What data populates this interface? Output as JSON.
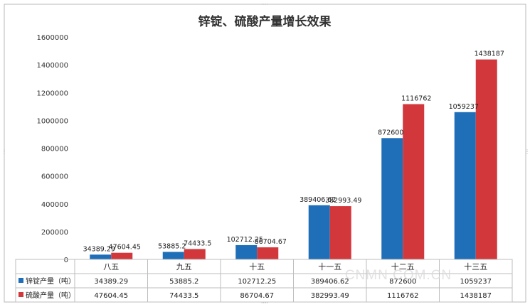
{
  "chart_data": {
    "type": "bar",
    "title": "锌锭、硫酸产量增长效果",
    "categories": [
      "八五",
      "九五",
      "十五",
      "十一五",
      "十二五",
      "十三五"
    ],
    "series": [
      {
        "name": "锌锭产量（吨）",
        "color": "#1f6fb8",
        "values": [
          34389.29,
          53885.2,
          102712.25,
          389406.62,
          872600,
          1059237
        ],
        "labels": [
          "34389.29",
          "53885.2",
          "102712.25",
          "389406.62",
          "872600",
          "1059237"
        ]
      },
      {
        "name": "硫酸产量（吨）",
        "color": "#d2373c",
        "values": [
          47604.45,
          74433.5,
          86704.67,
          382993.49,
          1116762,
          1438187
        ],
        "labels": [
          "47604.45",
          "74433.5",
          "86704.67",
          "382993.49",
          "1116762",
          "1438187"
        ]
      }
    ],
    "ylim": [
      0,
      1600000
    ],
    "yticks": [
      0,
      200000,
      400000,
      600000,
      800000,
      1000000,
      1200000,
      1400000,
      1600000
    ],
    "ytick_labels": [
      "0",
      "200000",
      "400000",
      "600000",
      "800000",
      "1000000",
      "1200000",
      "1400000",
      "1600000"
    ],
    "grid": false,
    "legend": "data-table-below"
  },
  "watermark": "CNMN.COM.CN"
}
